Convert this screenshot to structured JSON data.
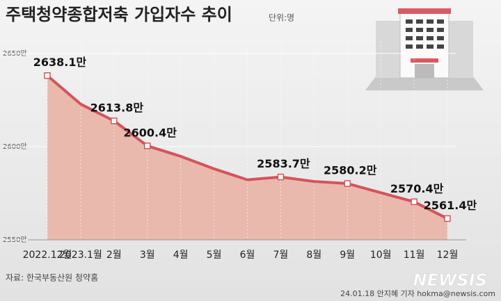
{
  "chart_data": {
    "type": "area",
    "title": "주택청약종합저축 가입자수 추이",
    "unit_note": "단위:명",
    "categories": [
      "2022.12월",
      "2023.1월",
      "2월",
      "3월",
      "4월",
      "5월",
      "6월",
      "7월",
      "8월",
      "9월",
      "10월",
      "11월",
      "12월"
    ],
    "values": [
      2638.1,
      2622.8,
      2613.8,
      2600.4,
      2594.8,
      2588.1,
      2582.2,
      2583.7,
      2581.3,
      2580.2,
      2575.3,
      2570.4,
      2561.4
    ],
    "value_labels": [
      "2638.1만",
      null,
      "2613.8만",
      "2600.4만",
      null,
      null,
      null,
      "2583.7만",
      null,
      "2580.2만",
      null,
      "2570.4만",
      "2561.4만"
    ],
    "color": "#d4545a",
    "fill_color": "#e9b9ad",
    "ylim": [
      2550,
      2660
    ],
    "yticks": [
      {
        "value": 2550,
        "label": "2550만"
      },
      {
        "value": 2600,
        "label": "2600만"
      },
      {
        "value": 2650,
        "label": "2650만"
      }
    ],
    "grid": true
  },
  "source": "자료: 한국부동산원 청약홈",
  "credit": "24.01.18 안지혜 기자 hokma@newsis.com",
  "watermark": "NEWSIS"
}
